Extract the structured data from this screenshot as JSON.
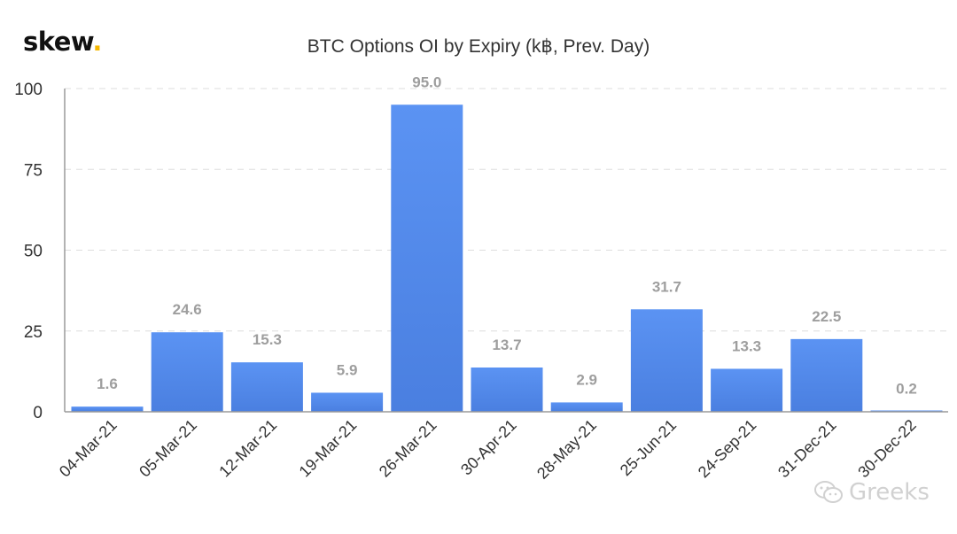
{
  "logo": {
    "text": "skew",
    "dot": "."
  },
  "watermark": {
    "text": "Greeks",
    "icon": "wechat-icon"
  },
  "colors": {
    "bar_top": "#5b93f3",
    "bar_bottom": "#4a7fe0",
    "grid": "#dddddd",
    "axis": "#9a9a9a",
    "tick_text": "#333333",
    "value_label": "#9e9e9e"
  },
  "chart_data": {
    "type": "bar",
    "title": "BTC Options OI by Expiry (k฿, Prev. Day)",
    "xlabel": "",
    "ylabel": "",
    "categories": [
      "04-Mar-21",
      "05-Mar-21",
      "12-Mar-21",
      "19-Mar-21",
      "26-Mar-21",
      "30-Apr-21",
      "28-May-21",
      "25-Jun-21",
      "24-Sep-21",
      "31-Dec-21",
      "30-Dec-22"
    ],
    "values": [
      1.6,
      24.6,
      15.3,
      5.9,
      95.0,
      13.7,
      2.9,
      31.7,
      13.3,
      22.5,
      0.2
    ],
    "value_labels": [
      "1.6",
      "24.6",
      "15.3",
      "5.9",
      "95.0",
      "13.7",
      "2.9",
      "31.7",
      "13.3",
      "22.5",
      "0.2"
    ],
    "ylim": [
      0,
      100
    ],
    "yticks": [
      0,
      25,
      50,
      75,
      100
    ],
    "grid": true,
    "grid_style": "dashed"
  }
}
